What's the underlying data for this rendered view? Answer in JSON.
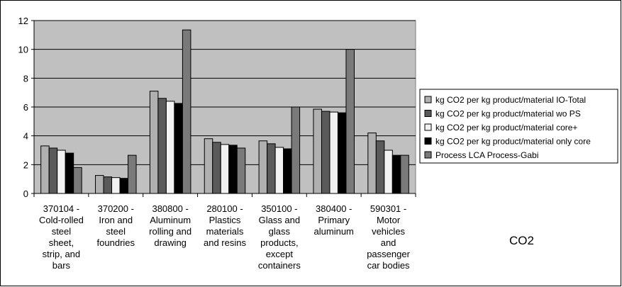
{
  "chart_data": {
    "type": "bar",
    "categories": [
      [
        "370104 -",
        "Cold-rolled",
        "steel",
        "sheet,",
        "strip, and",
        "bars"
      ],
      [
        "370200 -",
        "Iron and",
        "steel",
        "foundries"
      ],
      [
        "380800 -",
        "Aluminum",
        "rolling and",
        "drawing"
      ],
      [
        "280100 -",
        "Plastics",
        "materials",
        "and resins"
      ],
      [
        "350100 -",
        "Glass and",
        "glass",
        "products,",
        "except",
        "containers"
      ],
      [
        "380400 -",
        "Primary",
        "aluminum"
      ],
      [
        "590301 -",
        "Motor",
        "vehicles",
        "and",
        "passenger",
        "car bodies"
      ]
    ],
    "series": [
      {
        "name": "kg CO2 per kg product/material IO-Total",
        "color": "#b0b0b0",
        "values": [
          3.3,
          1.25,
          7.1,
          3.8,
          3.65,
          5.85,
          4.2
        ]
      },
      {
        "name": "kg CO2 per kg product/material wo PS",
        "color": "#5a5a5a",
        "values": [
          3.15,
          1.15,
          6.6,
          3.55,
          3.45,
          5.7,
          3.65
        ]
      },
      {
        "name": "kg CO2 per kg product/material core+",
        "color": "#f2f2f2",
        "values": [
          3.0,
          1.1,
          6.4,
          3.4,
          3.2,
          5.65,
          3.0
        ]
      },
      {
        "name": "kg CO2 per kg product/material only core",
        "color": "#000000",
        "values": [
          2.8,
          1.05,
          6.25,
          3.35,
          3.1,
          5.6,
          2.65
        ]
      },
      {
        "name": "Process LCA Process-Gabi",
        "color": "#7a7a7a",
        "values": [
          1.8,
          2.65,
          11.35,
          3.15,
          6.0,
          10.0,
          2.65
        ]
      }
    ],
    "ylim": [
      0,
      12
    ],
    "yticks": [
      0,
      2,
      4,
      6,
      8,
      10,
      12
    ],
    "grid": true,
    "plot_background": "#c0c0c0",
    "legend_position": "right",
    "annotation": "CO2",
    "title": "",
    "xlabel": "",
    "ylabel": ""
  }
}
